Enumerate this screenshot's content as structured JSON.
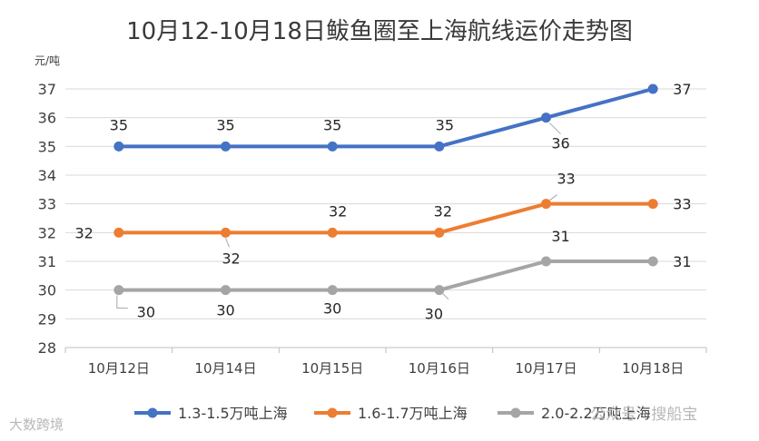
{
  "chart_data": {
    "type": "line",
    "title": "10月12-10月18日鲅鱼圈至上海航线运价走势图",
    "ylabel": "元/吨",
    "xlabel": "",
    "categories": [
      "10月12日",
      "10月14日",
      "10月15日",
      "10月16日",
      "10月17日",
      "10月18日"
    ],
    "ylim": [
      28,
      37
    ],
    "yticks": [
      28,
      29,
      30,
      31,
      32,
      33,
      34,
      35,
      36,
      37
    ],
    "grid": true,
    "legend_position": "bottom",
    "series": [
      {
        "name": "1.3-1.5万吨上海",
        "color": "#4472C4",
        "values": [
          35,
          35,
          35,
          35,
          36,
          37
        ]
      },
      {
        "name": "1.6-1.7万吨上海",
        "color": "#ED7D31",
        "values": [
          32,
          32,
          32,
          32,
          33,
          33
        ]
      },
      {
        "name": "2.0-2.2万吨上海",
        "color": "#A5A5A5",
        "values": [
          30,
          30,
          30,
          30,
          31,
          31
        ]
      }
    ]
  },
  "watermark": {
    "right_text": "公众号 · 搜船宝",
    "left_text": "大数跨境"
  }
}
